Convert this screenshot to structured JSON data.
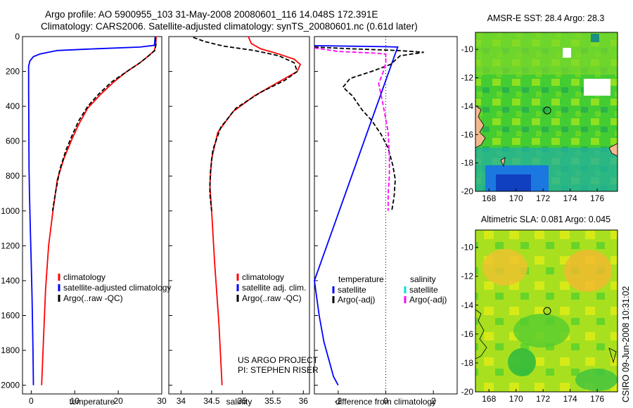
{
  "header": {
    "line1": "Argo profile: AO 5900955_103 31-May-2008 20080601_116 14.048S 172.391E",
    "line2": "Climatology: CARS2006. Satellite-adjusted climatology: synTS_20080601.nc (0.61d later)"
  },
  "colors": {
    "climatology": "#ff0000",
    "satellite": "#0000ff",
    "argo": "#000000",
    "argo_adj_salinity": "#ff00ff",
    "satellite_salinity": "#00e0e0"
  },
  "chart_data": [
    {
      "type": "line",
      "panel": "temperature",
      "xlabel": "temperature",
      "xlim": [
        -2,
        30
      ],
      "ylim": [
        0,
        2050
      ],
      "y_reversed": true,
      "xticks": [
        0,
        10,
        20,
        30
      ],
      "yticks": [
        0,
        200,
        400,
        600,
        800,
        1000,
        1200,
        1400,
        1600,
        1800,
        2000
      ],
      "legend": [
        "climatology",
        "satellite-adjusted climatology",
        "Argo(..raw -QC)"
      ],
      "series": [
        {
          "name": "climatology",
          "color": "#ff0000",
          "style": "solid",
          "x": [
            28.7,
            28.6,
            28.3,
            27.0,
            25.0,
            22.0,
            19.0,
            16.0,
            13.0,
            11.0,
            9.5,
            7.5,
            6.0,
            5.0,
            4.0,
            3.3,
            2.8,
            2.4
          ],
          "y": [
            0,
            50,
            80,
            110,
            150,
            200,
            260,
            330,
            410,
            500,
            580,
            700,
            820,
            1000,
            1200,
            1450,
            1750,
            2000
          ]
        },
        {
          "name": "satellite-adjusted climatology",
          "color": "#0000ff",
          "style": "solid",
          "x": [
            28.5,
            28.3,
            25.0,
            15.0,
            6.0,
            2.0,
            0.5,
            -0.3,
            -0.6,
            -0.6,
            -0.5,
            -0.4,
            -0.2,
            0.0,
            0.2,
            0.4,
            0.5
          ],
          "y": [
            0,
            50,
            60,
            70,
            80,
            100,
            115,
            140,
            170,
            300,
            760,
            900,
            1100,
            1300,
            1500,
            1800,
            2000
          ]
        },
        {
          "name": "Argo(..raw -QC)",
          "color": "#000000",
          "style": "dashed",
          "x": [
            28.5,
            28.7,
            28.4,
            27.0,
            25.0,
            22.0,
            18.5,
            15.5,
            13.0,
            11.0,
            9.5,
            8.0,
            6.6,
            5.7,
            4.9
          ],
          "y": [
            5,
            40,
            80,
            110,
            150,
            200,
            260,
            330,
            400,
            480,
            560,
            650,
            760,
            880,
            1000
          ]
        }
      ]
    },
    {
      "type": "line",
      "panel": "salinity",
      "xlabel": "salinity",
      "xlim": [
        33.8,
        36.1
      ],
      "ylim": [
        0,
        2050
      ],
      "y_reversed": true,
      "xticks": [
        34,
        34.5,
        35,
        35.5,
        36
      ],
      "legend": [
        "climatology",
        "satellite adj. clim.",
        "Argo(..raw -QC)"
      ],
      "annotation": [
        "US ARGO PROJECT",
        "PI: STEPHEN RISER"
      ],
      "series": [
        {
          "name": "climatology",
          "color": "#ff0000",
          "style": "solid",
          "x": [
            35.1,
            35.15,
            35.3,
            35.6,
            35.85,
            35.95,
            35.9,
            35.6,
            35.2,
            34.85,
            34.6,
            34.5,
            34.47,
            34.5,
            34.55,
            34.62,
            34.67
          ],
          "y": [
            0,
            40,
            70,
            100,
            130,
            160,
            200,
            260,
            340,
            430,
            550,
            700,
            850,
            1000,
            1300,
            1650,
            2000
          ]
        },
        {
          "name": "Argo(..raw -QC)",
          "color": "#000000",
          "style": "dashed",
          "x": [
            34.2,
            34.4,
            34.7,
            35.2,
            35.6,
            35.85,
            35.9,
            35.7,
            35.3,
            34.9,
            34.65,
            34.52,
            34.48,
            34.47,
            34.5
          ],
          "y": [
            5,
            30,
            55,
            80,
            110,
            150,
            200,
            250,
            320,
            410,
            520,
            650,
            780,
            900,
            1000
          ]
        }
      ]
    },
    {
      "type": "line",
      "panel": "difference",
      "xlabel": "difference from climatology",
      "xlim": [
        -3,
        3
      ],
      "ylim": [
        0,
        2050
      ],
      "y_reversed": true,
      "xticks": [
        -2,
        0,
        2
      ],
      "legend_titles": [
        "temperature",
        "salinity"
      ],
      "legend": [
        "satellite",
        "Argo(-adj)",
        "satellite",
        "Argo(-adj)"
      ],
      "series": [
        {
          "name": "temperature satellite",
          "color": "#0000ff",
          "style": "solid",
          "x": [
            -3.0,
            -2.0,
            -1.0,
            0.0,
            0.5,
            -3.0,
            -2.8,
            -2.6,
            -2.4,
            -2.3,
            -2.2,
            -2.0
          ],
          "y": [
            52,
            54,
            56,
            58,
            60,
            1400,
            1600,
            1750,
            1850,
            1900,
            1950,
            2000
          ]
        },
        {
          "name": "temperature Argo(-adj)",
          "color": "#000000",
          "style": "dashed",
          "x": [
            -3.0,
            -1.5,
            0.5,
            1.6,
            0.6,
            0.2,
            -0.6,
            -1.5,
            -1.8,
            -1.4,
            -1.0,
            -0.6,
            -0.2,
            0.1,
            0.3,
            0.4,
            0.35,
            0.25
          ],
          "y": [
            60,
            70,
            80,
            90,
            110,
            160,
            200,
            240,
            290,
            340,
            420,
            480,
            560,
            640,
            740,
            820,
            920,
            1000
          ]
        },
        {
          "name": "salinity Argo(-adj)",
          "color": "#ff00ff",
          "style": "dashed",
          "x": [
            -3.0,
            -2.0,
            -0.5,
            0.0,
            0.0,
            -0.1,
            -0.3,
            -0.1,
            0.1,
            0.15,
            0.15,
            0.1,
            0.1
          ],
          "y": [
            65,
            85,
            95,
            100,
            150,
            200,
            270,
            400,
            550,
            700,
            800,
            900,
            1000
          ]
        }
      ]
    },
    {
      "type": "heatmap",
      "panel": "map-sst",
      "title": "AMSR-E SST: 28.4 Argo: 28.3",
      "xlim": [
        167,
        177.5
      ],
      "ylim": [
        -20,
        -8.8
      ],
      "xticks": [
        168,
        170,
        172,
        174,
        176
      ],
      "yticks": [
        -10,
        -12,
        -14,
        -16,
        -18,
        -20
      ],
      "marker": {
        "lon": 172.391,
        "lat": -14.048
      }
    },
    {
      "type": "heatmap",
      "panel": "map-sla",
      "title": "Altimetric SLA: 0.081 Argo: 0.045",
      "xlim": [
        167,
        177.5
      ],
      "ylim": [
        -20,
        -8.8
      ],
      "xticks": [
        168,
        170,
        172,
        174,
        176
      ],
      "yticks": [
        -10,
        -12,
        -14,
        -16,
        -18,
        -20
      ],
      "marker": {
        "lon": 172.391,
        "lat": -14.048
      }
    }
  ],
  "footer": {
    "credit": "CSIRO 09-Jun-2008 10:31:02"
  }
}
